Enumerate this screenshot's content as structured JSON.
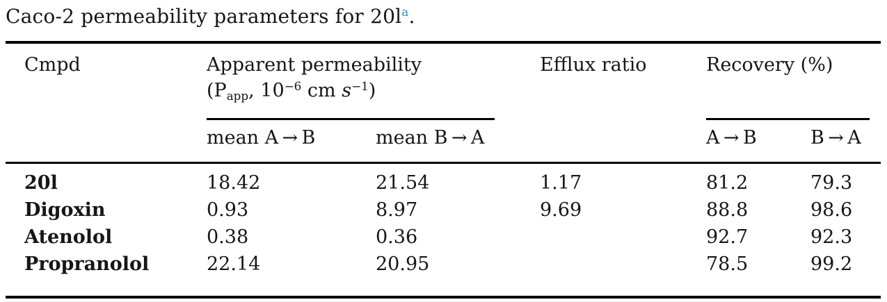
{
  "colors": {
    "footnote_blue": "#2e8bc9",
    "text": "#161616",
    "rule": "#000000"
  },
  "caption": {
    "text": "Caco-2 permeability parameters for 20l",
    "footnote_marker": "a",
    "suffix": "."
  },
  "table": {
    "headers": {
      "cmpd": "Cmpd",
      "apparent_permeability_line1": "Apparent permeability",
      "papp_open": "(P",
      "papp_sub": "app",
      "papp_comma_ten": ", 10",
      "papp_exponent1": "−6",
      "papp_cm": " cm ",
      "papp_s": "s",
      "papp_exponent2": "−1",
      "papp_close": ")",
      "efflux_ratio": "Efflux ratio",
      "recovery": "Recovery (%)"
    },
    "subheaders": {
      "mean_a_to_b": "mean A → B",
      "mean_b_to_a": "mean B → A",
      "a_to_b": "A → B",
      "b_to_a": "B → A"
    },
    "rows": [
      {
        "name": "20l",
        "mean_ab": "18.42",
        "mean_ba": "21.54",
        "efflux": "1.17",
        "rec_ab": "81.2",
        "rec_ba": "79.3"
      },
      {
        "name": "Digoxin",
        "mean_ab": "0.93",
        "mean_ba": "8.97",
        "efflux": "9.69",
        "rec_ab": "88.8",
        "rec_ba": "98.6"
      },
      {
        "name": "Atenolol",
        "mean_ab": "0.38",
        "mean_ba": "0.36",
        "efflux": "",
        "rec_ab": "92.7",
        "rec_ba": "92.3"
      },
      {
        "name": "Propranolol",
        "mean_ab": "22.14",
        "mean_ba": "20.95",
        "efflux": "",
        "rec_ab": "78.5",
        "rec_ba": "99.2"
      }
    ]
  }
}
